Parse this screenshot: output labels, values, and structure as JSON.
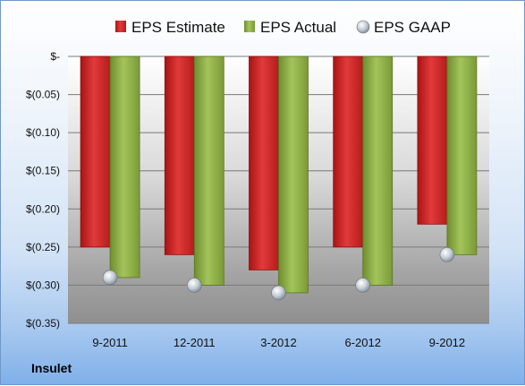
{
  "company": "Insulet",
  "chart_data": {
    "type": "bar",
    "categories": [
      "9-2011",
      "12-2011",
      "3-2012",
      "6-2012",
      "9-2012"
    ],
    "series": [
      {
        "name": "EPS Estimate",
        "kind": "bar",
        "color": "#d42a2a",
        "values": [
          -0.25,
          -0.26,
          -0.28,
          -0.25,
          -0.22
        ]
      },
      {
        "name": "EPS Actual",
        "kind": "bar",
        "color": "#8fb04a",
        "values": [
          -0.29,
          -0.3,
          -0.31,
          -0.3,
          -0.26
        ]
      },
      {
        "name": "EPS GAAP",
        "kind": "marker",
        "color": "#b8c2cc",
        "values": [
          -0.29,
          -0.3,
          -0.31,
          -0.3,
          -0.26
        ]
      }
    ],
    "yticks": [
      "$-",
      "$(0.05)",
      "$(0.10)",
      "$(0.15)",
      "$(0.20)",
      "$(0.25)",
      "$(0.30)",
      "$(0.35)"
    ],
    "ylim": [
      -0.35,
      0
    ],
    "grid": true,
    "legend": "top"
  }
}
